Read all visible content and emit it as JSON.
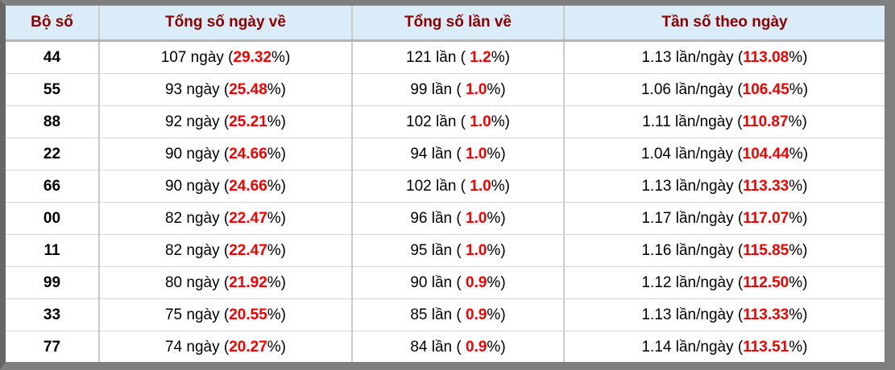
{
  "colors": {
    "frame_gray": "#7f7f7f",
    "frame_left_gray": "#676767",
    "header_bg": "#d9ecf7",
    "header_text": "#8e0000",
    "highlight_red": "#f30000",
    "cell_border": "#cbcbcb",
    "row_border": "#d6d6d6",
    "header_border": "#b4b4b4",
    "body_text": "#000000"
  },
  "table": {
    "headers": [
      "Bộ số",
      "Tổng số ngày về",
      "Tổng số lần về",
      "Tần số theo ngày"
    ],
    "rows": [
      {
        "pair": "44",
        "days": {
          "pre": "107 ngày (",
          "value": "29.32",
          "post": "%)"
        },
        "times": {
          "pre": "121 lần ( ",
          "value": "1.2",
          "post": "%)"
        },
        "freq": {
          "pre": "1.13 lần/ngày (",
          "value": "113.08",
          "post": "%)"
        }
      },
      {
        "pair": "55",
        "days": {
          "pre": "93 ngày (",
          "value": "25.48",
          "post": "%)"
        },
        "times": {
          "pre": "99 lần ( ",
          "value": "1.0",
          "post": "%)"
        },
        "freq": {
          "pre": "1.06 lần/ngày (",
          "value": "106.45",
          "post": "%)"
        }
      },
      {
        "pair": "88",
        "days": {
          "pre": "92 ngày (",
          "value": "25.21",
          "post": "%)"
        },
        "times": {
          "pre": "102 lần ( ",
          "value": "1.0",
          "post": "%)"
        },
        "freq": {
          "pre": "1.11 lần/ngày (",
          "value": "110.87",
          "post": "%)"
        }
      },
      {
        "pair": "22",
        "days": {
          "pre": "90 ngày (",
          "value": "24.66",
          "post": "%)"
        },
        "times": {
          "pre": "94 lần ( ",
          "value": "1.0",
          "post": "%)"
        },
        "freq": {
          "pre": "1.04 lần/ngày (",
          "value": "104.44",
          "post": "%)"
        }
      },
      {
        "pair": "66",
        "days": {
          "pre": "90 ngày (",
          "value": "24.66",
          "post": "%)"
        },
        "times": {
          "pre": "102 lần ( ",
          "value": "1.0",
          "post": "%)"
        },
        "freq": {
          "pre": "1.13 lần/ngày (",
          "value": "113.33",
          "post": "%)"
        }
      },
      {
        "pair": "00",
        "days": {
          "pre": "82 ngày (",
          "value": "22.47",
          "post": "%)"
        },
        "times": {
          "pre": "96 lần ( ",
          "value": "1.0",
          "post": "%)"
        },
        "freq": {
          "pre": "1.17 lần/ngày (",
          "value": "117.07",
          "post": "%)"
        }
      },
      {
        "pair": "11",
        "days": {
          "pre": "82 ngày (",
          "value": "22.47",
          "post": "%)"
        },
        "times": {
          "pre": "95 lần ( ",
          "value": "1.0",
          "post": "%)"
        },
        "freq": {
          "pre": "1.16 lần/ngày (",
          "value": "115.85",
          "post": "%)"
        }
      },
      {
        "pair": "99",
        "days": {
          "pre": "80 ngày (",
          "value": "21.92",
          "post": "%)"
        },
        "times": {
          "pre": "90 lần ( ",
          "value": "0.9",
          "post": "%)"
        },
        "freq": {
          "pre": "1.12 lần/ngày (",
          "value": "112.50",
          "post": "%)"
        }
      },
      {
        "pair": "33",
        "days": {
          "pre": "75 ngày (",
          "value": "20.55",
          "post": "%)"
        },
        "times": {
          "pre": "85 lần ( ",
          "value": "0.9",
          "post": "%)"
        },
        "freq": {
          "pre": "1.13 lần/ngày (",
          "value": "113.33",
          "post": "%)"
        }
      },
      {
        "pair": "77",
        "days": {
          "pre": "74 ngày (",
          "value": "20.27",
          "post": "%)"
        },
        "times": {
          "pre": "84 lần ( ",
          "value": "0.9",
          "post": "%)"
        },
        "freq": {
          "pre": "1.14 lần/ngày (",
          "value": "113.51",
          "post": "%)"
        }
      }
    ]
  }
}
